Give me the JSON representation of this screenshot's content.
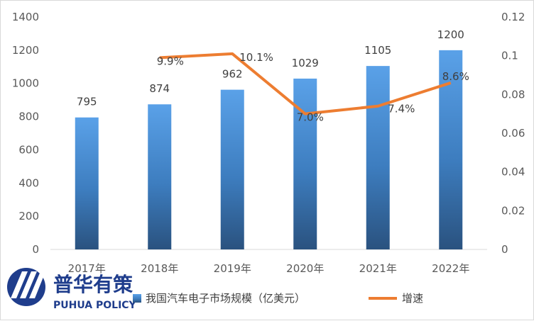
{
  "chart_data": {
    "type": "bar+line",
    "categories": [
      "2017年",
      "2018年",
      "2019年",
      "2020年",
      "2021年",
      "2022年"
    ],
    "series": [
      {
        "name": "我国汽车电子市场规模（亿美元）",
        "type": "bar",
        "axis": "left",
        "values": [
          795,
          874,
          962,
          1029,
          1105,
          1200
        ],
        "labels": [
          "795",
          "874",
          "962",
          "1029",
          "1105",
          "1200"
        ],
        "color": "#4a8fd6"
      },
      {
        "name": "增速",
        "type": "line",
        "axis": "right",
        "values": [
          null,
          0.099,
          0.101,
          0.07,
          0.074,
          0.086
        ],
        "labels": [
          "",
          "9.9%",
          "10.1%",
          "7.0%",
          "7.4%",
          "8.6%"
        ],
        "color": "#ed7d31"
      }
    ],
    "y_left": {
      "ylim": [
        0,
        1400
      ],
      "ticks": [
        "0",
        "200",
        "400",
        "600",
        "800",
        "1000",
        "1200",
        "1400"
      ]
    },
    "y_right": {
      "ylim": [
        0,
        0.12
      ],
      "ticks": [
        "0",
        "0.02",
        "0.04",
        "0.06",
        "0.08",
        "0.1",
        "0.12"
      ]
    },
    "grid": false,
    "legend": "bottom"
  },
  "logo": {
    "text_cn": "普华有策",
    "text_en": "PUHUA POLICY"
  },
  "legend": {
    "bar_label": "我国汽车电子市场规模（亿美元）",
    "line_label": "增速"
  }
}
